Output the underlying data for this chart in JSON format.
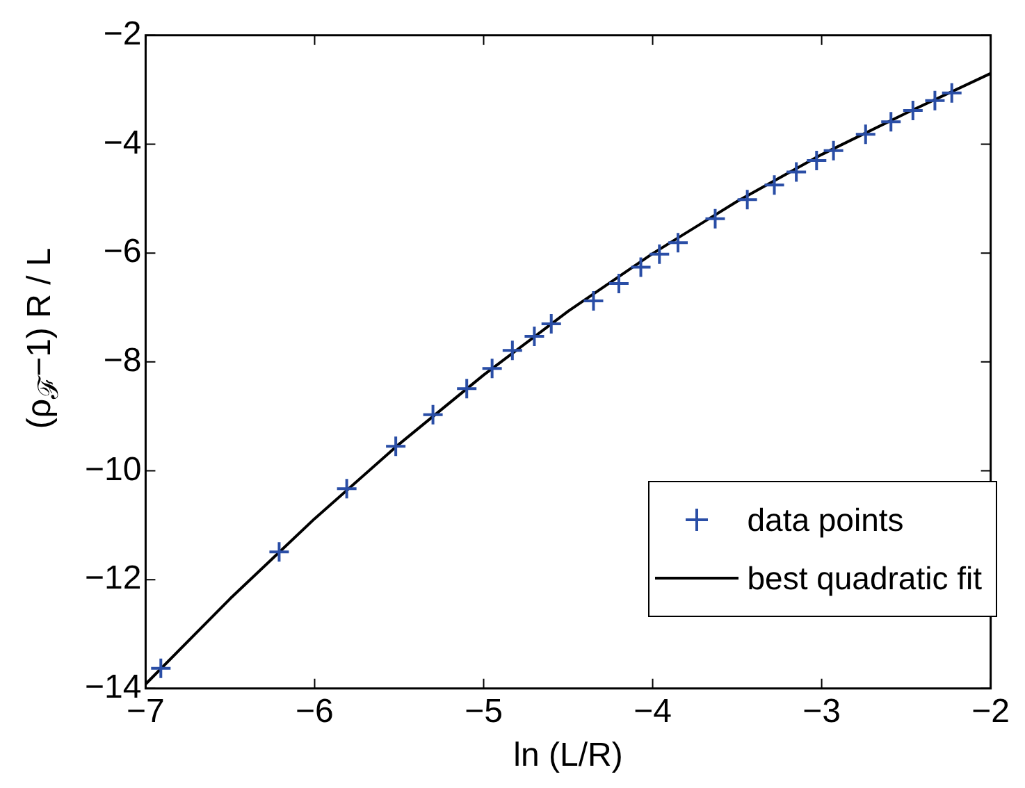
{
  "chart_data": {
    "type": "scatter",
    "xlabel": "ln (L/R)",
    "ylabel": "(ρ$_{ℱ}$−1) R / L",
    "xlim": [
      -7,
      -2
    ],
    "xticks": [
      -7,
      -6,
      -5,
      -4,
      -3,
      -2
    ],
    "ylim": [
      -14,
      -2
    ],
    "yticks": [
      -14,
      -12,
      -10,
      -8,
      -6,
      -4,
      -2
    ],
    "grid": false,
    "legend": "bottom right",
    "series": [
      {
        "name": "data points",
        "marker": "cross",
        "color": "#2a4ea6",
        "x": [
          -6.91,
          -6.21,
          -5.81,
          -5.52,
          -5.3,
          -5.1,
          -4.95,
          -4.83,
          -4.7,
          -4.6,
          -4.35,
          -4.2,
          -4.07,
          -3.96,
          -3.85,
          -3.63,
          -3.44,
          -3.28,
          -3.15,
          -3.03,
          -2.93,
          -2.74,
          -2.59,
          -2.46,
          -2.33,
          -2.23
        ],
        "values": [
          -13.63,
          -11.49,
          -10.33,
          -9.55,
          -8.97,
          -8.49,
          -8.12,
          -7.79,
          -7.53,
          -7.3,
          -6.88,
          -6.56,
          -6.26,
          -6.02,
          -5.81,
          -5.37,
          -5.02,
          -4.75,
          -4.51,
          -4.3,
          -4.12,
          -3.82,
          -3.59,
          -3.38,
          -3.2,
          -3.06
        ]
      },
      {
        "name": "best quadratic fit",
        "type": "line",
        "marker": "none",
        "line_style": "solid",
        "color": "#000000",
        "x": [
          -7,
          -6.5,
          -6,
          -5.5,
          -5,
          -4.5,
          -4,
          -3.5,
          -3,
          -2.5,
          -2
        ],
        "values": [
          -13.92,
          -12.35,
          -10.88,
          -9.51,
          -8.24,
          -7.07,
          -6.01,
          -5.05,
          -4.19,
          -3.43,
          -2.7
        ]
      }
    ]
  }
}
